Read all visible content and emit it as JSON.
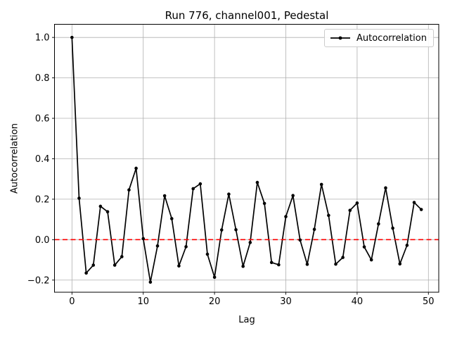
{
  "chart_data": {
    "type": "line",
    "title": "Run 776, channel001, Pedestal",
    "xlabel": "Lag",
    "ylabel": "Autocorrelation",
    "legend": [
      {
        "label": "Autocorrelation",
        "color": "#000000",
        "marker": "dot"
      }
    ],
    "legend_location": "upper right",
    "grid": true,
    "x": [
      0,
      1,
      2,
      3,
      4,
      5,
      6,
      7,
      8,
      9,
      10,
      11,
      12,
      13,
      14,
      15,
      16,
      17,
      18,
      19,
      20,
      21,
      22,
      23,
      24,
      25,
      26,
      27,
      28,
      29,
      30,
      31,
      32,
      33,
      34,
      35,
      36,
      37,
      38,
      39,
      40,
      41,
      42,
      43,
      44,
      45,
      46,
      47,
      48,
      49
    ],
    "series": [
      {
        "name": "Autocorrelation",
        "values": [
          1.0,
          0.205,
          -0.165,
          -0.126,
          0.165,
          0.138,
          -0.126,
          -0.084,
          0.246,
          0.353,
          0.005,
          -0.21,
          -0.031,
          0.217,
          0.104,
          -0.13,
          -0.035,
          0.252,
          0.276,
          -0.072,
          -0.186,
          0.048,
          0.225,
          0.049,
          -0.132,
          -0.014,
          0.283,
          0.179,
          -0.113,
          -0.124,
          0.114,
          0.218,
          -0.002,
          -0.122,
          0.051,
          0.273,
          0.12,
          -0.121,
          -0.088,
          0.145,
          0.181,
          -0.036,
          -0.1,
          0.078,
          0.256,
          0.057,
          -0.12,
          -0.028,
          0.184,
          0.149
        ]
      }
    ],
    "zero_line": {
      "y": 0.0,
      "color": "#ff0000",
      "style": "dashed"
    },
    "axes": {
      "xticks": [
        0,
        10,
        20,
        30,
        40,
        50
      ],
      "xtick_labels": [
        "0",
        "10",
        "20",
        "30",
        "40",
        "50"
      ],
      "yticks": [
        -0.2,
        0.0,
        0.2,
        0.4,
        0.6,
        0.8,
        1.0
      ],
      "ytick_labels": [
        "−0.2",
        "0.0",
        "0.2",
        "0.4",
        "0.6",
        "0.8",
        "1.0"
      ],
      "xlim": [
        -2.45,
        51.45
      ],
      "ylim": [
        -0.26,
        1.065
      ]
    },
    "colors": {
      "line": "#000000",
      "marker": "#000000",
      "grid": "#b0b0b0",
      "spine": "#000000",
      "background": "#ffffff",
      "zero_line": "#ff0000"
    }
  }
}
